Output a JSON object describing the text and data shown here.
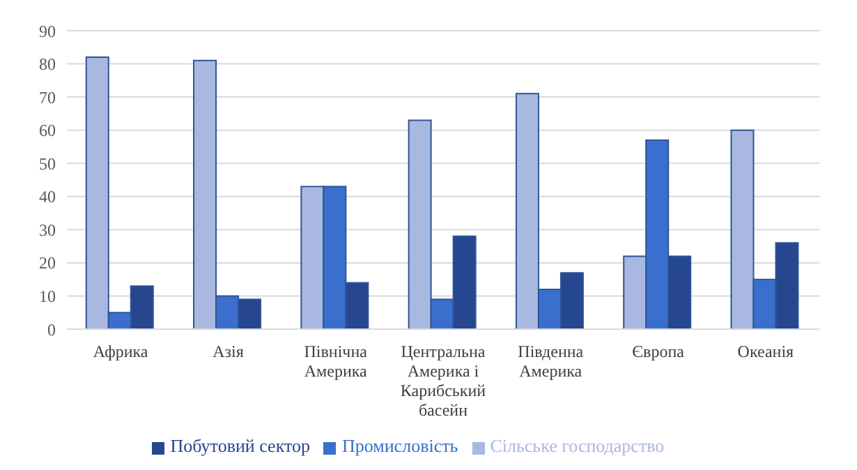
{
  "chart_data": {
    "type": "bar",
    "categories": [
      "Африка",
      "Азія",
      "Північна Америка",
      "Центральна Америка і Карибський басейн",
      "Південна Америка",
      "Європа",
      "Океанія"
    ],
    "series": [
      {
        "name": "Сільське господарство",
        "color": "#a9b8e0",
        "values": [
          82,
          81,
          43,
          63,
          71,
          22,
          60
        ]
      },
      {
        "name": "Промисловість",
        "color": "#3a6fce",
        "values": [
          5,
          10,
          43,
          9,
          12,
          57,
          15
        ]
      },
      {
        "name": "Побутовий сектор",
        "color": "#26468f",
        "values": [
          13,
          9,
          14,
          28,
          17,
          22,
          26
        ]
      }
    ],
    "ylim": [
      0,
      90
    ],
    "yticks": [
      0,
      10,
      20,
      30,
      40,
      50,
      60,
      70,
      80,
      90
    ],
    "grid": "y",
    "legend": "bottom"
  }
}
